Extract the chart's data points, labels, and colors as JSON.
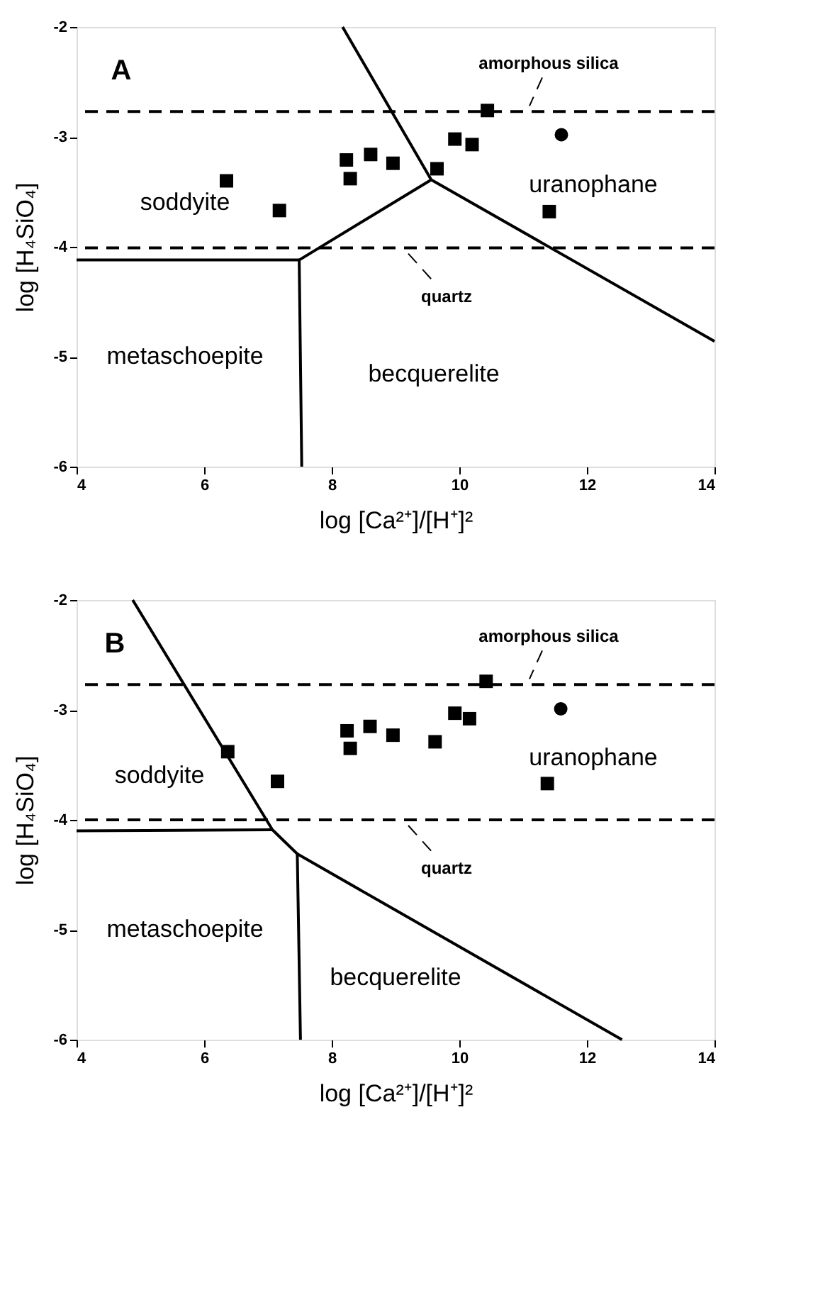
{
  "chart_data": [
    {
      "type": "scatter",
      "xlabel": "log [Ca²⁺]/[H⁺]²",
      "ylabel": "log [H₄SiO₄]",
      "xlim": [
        4,
        14
      ],
      "ylim": [
        -6,
        -2
      ],
      "xticks": [
        4,
        6,
        8,
        10,
        12,
        14
      ],
      "yticks": [
        -6,
        -5,
        -4,
        -3,
        -2
      ],
      "grid": false,
      "series": [
        {
          "marker": "square",
          "color": "#000000",
          "x": [
            6.35,
            7.18,
            8.23,
            8.29,
            8.61,
            8.96,
            9.65,
            9.93,
            10.2,
            10.44,
            11.41
          ],
          "values": [
            -3.4,
            -3.67,
            -3.21,
            -3.38,
            -3.16,
            -3.24,
            -3.29,
            -3.02,
            -3.07,
            -2.76,
            -3.68
          ]
        },
        {
          "marker": "circle",
          "color": "#000000",
          "x": [
            11.6
          ],
          "values": [
            -2.98
          ]
        },
        {
          "type": "line",
          "marker": "none",
          "line_style": "solid",
          "color": "#000000",
          "x": [
            8.17,
            9.56,
            14
          ],
          "values": [
            -2,
            -3.39,
            -4.86
          ]
        },
        {
          "type": "line",
          "marker": "none",
          "line_style": "solid",
          "color": "#000000",
          "x": [
            9.56,
            7.49
          ],
          "values": [
            -3.39,
            -4.12
          ]
        },
        {
          "type": "line",
          "marker": "none",
          "line_style": "solid",
          "color": "#000000",
          "x": [
            4,
            7.49,
            7.53
          ],
          "values": [
            -4.12,
            -4.12,
            -6
          ]
        }
      ],
      "ref_lines": [
        {
          "axis": "y",
          "value": -2.77,
          "label": "amorphous silica",
          "line_style": "dashed",
          "color": "#000000"
        },
        {
          "axis": "y",
          "value": -4.01,
          "label": "quartz",
          "line_style": "dashed",
          "color": "#000000"
        }
      ],
      "annotations": [
        "A",
        "soddyite",
        "uranophane",
        "metaschoepite",
        "becquerelite"
      ]
    },
    {
      "type": "scatter",
      "xlabel": "log [Ca²⁺]/[H⁺]²",
      "ylabel": "log [H₄SiO₄]",
      "xlim": [
        4,
        14
      ],
      "ylim": [
        -6,
        -2
      ],
      "xticks": [
        4,
        6,
        8,
        10,
        12,
        14
      ],
      "yticks": [
        -6,
        -5,
        -4,
        -3,
        -2
      ],
      "grid": false,
      "series": [
        {
          "marker": "square",
          "color": "#000000",
          "x": [
            6.37,
            7.15,
            8.24,
            8.29,
            8.6,
            8.96,
            9.62,
            9.93,
            10.16,
            10.42,
            11.38
          ],
          "values": [
            -3.38,
            -3.65,
            -3.19,
            -3.35,
            -3.15,
            -3.23,
            -3.29,
            -3.03,
            -3.08,
            -2.74,
            -3.67
          ]
        },
        {
          "marker": "circle",
          "color": "#000000",
          "x": [
            11.59
          ],
          "values": [
            -2.99
          ]
        },
        {
          "type": "line",
          "marker": "none",
          "line_style": "solid",
          "color": "#000000",
          "x": [
            4.88,
            7.07,
            7.46,
            12.55
          ],
          "values": [
            -2,
            -4.09,
            -4.31,
            -6
          ]
        },
        {
          "type": "line",
          "marker": "none",
          "line_style": "solid",
          "color": "#000000",
          "x": [
            4,
            7.07
          ],
          "values": [
            -4.1,
            -4.09
          ]
        },
        {
          "type": "line",
          "marker": "none",
          "line_style": "solid",
          "color": "#000000",
          "x": [
            7.46,
            7.51
          ],
          "values": [
            -4.31,
            -6
          ]
        }
      ],
      "ref_lines": [
        {
          "axis": "y",
          "value": -2.77,
          "label": "amorphous silica",
          "line_style": "dashed",
          "color": "#000000"
        },
        {
          "axis": "y",
          "value": -4.0,
          "label": "quartz",
          "line_style": "dashed",
          "color": "#000000"
        }
      ],
      "annotations": [
        "B",
        "soddyite",
        "uranophane",
        "metaschoepite",
        "becquerelite"
      ]
    }
  ]
}
